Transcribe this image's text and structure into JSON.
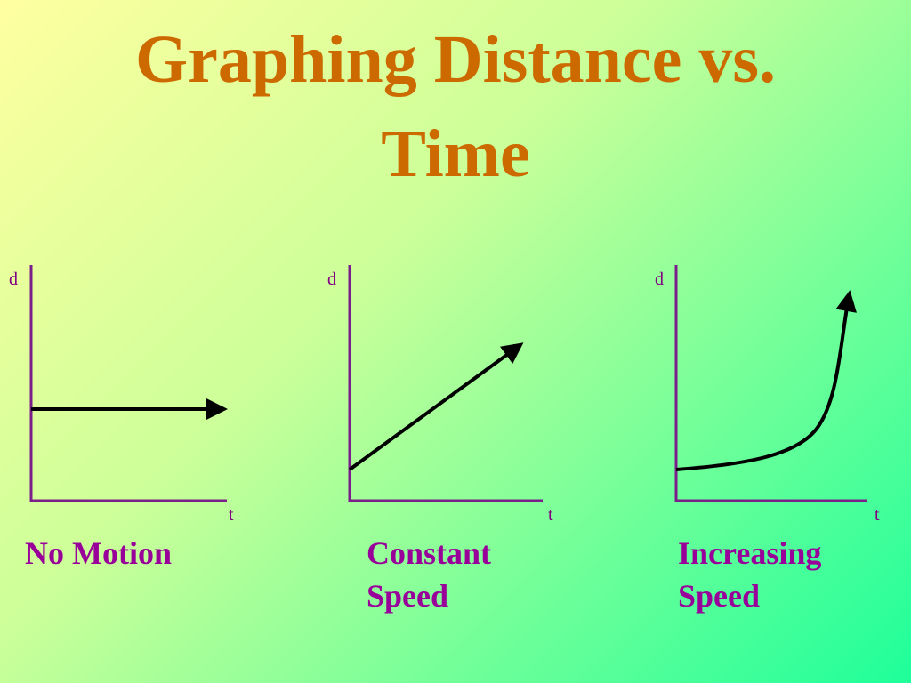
{
  "title": "Graphing Distance vs. Time",
  "panels": [
    {
      "y_label": "d",
      "x_label": "t",
      "caption": "No Motion"
    },
    {
      "y_label": "d",
      "x_label": "t",
      "caption": "Constant Speed"
    },
    {
      "y_label": "d",
      "x_label": "t",
      "caption": "Increasing Speed"
    }
  ]
}
